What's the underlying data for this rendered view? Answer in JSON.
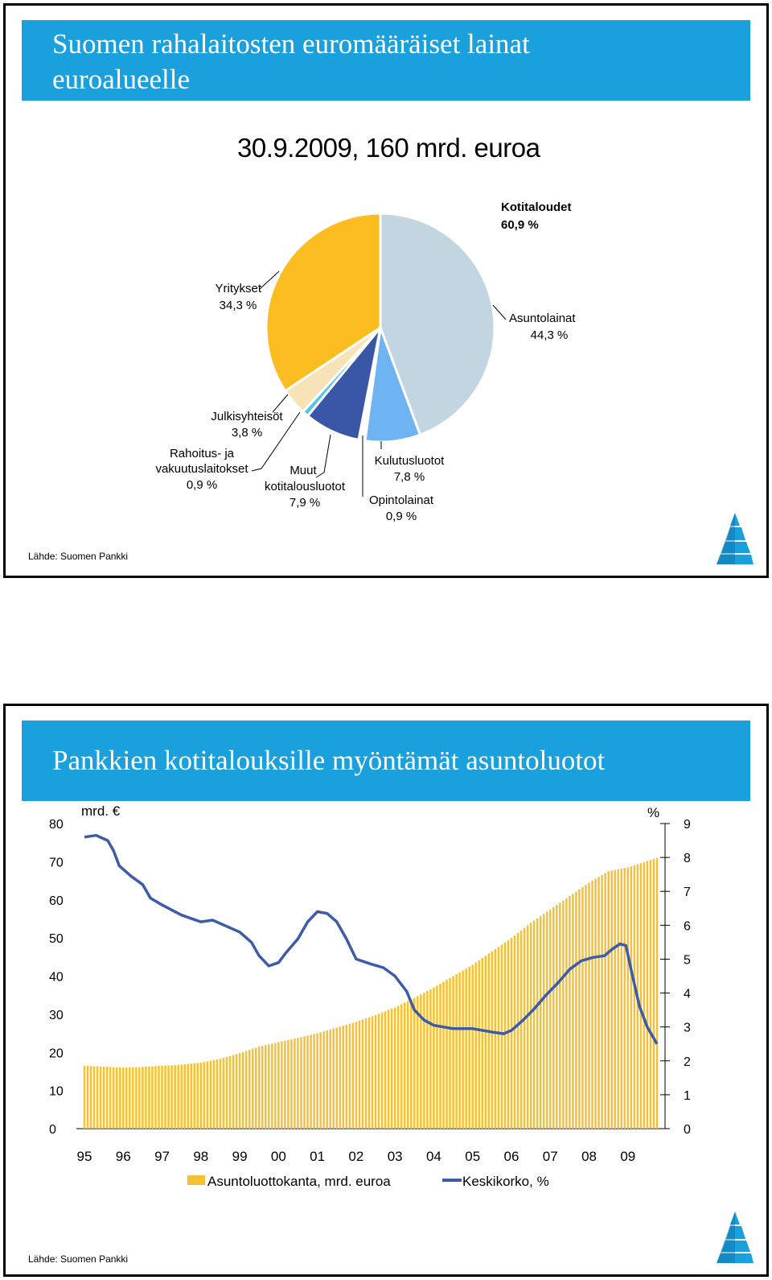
{
  "slide1": {
    "title": "Suomen rahalaitosten euromääräiset lainat euroalueelle",
    "subtitle": "30.9.2009, 160 mrd. euroa",
    "source": "Lähde: Suomen Pankki",
    "group_label": {
      "name": "Kotitaloudet",
      "value": "60,9 %"
    }
  },
  "chart_data": [
    {
      "type": "pie",
      "title": "30.9.2009, 160 mrd. euroa",
      "slices": [
        {
          "label": "Asuntolainat",
          "value": 44.3,
          "value_text": "44,3 %",
          "color": "#c2d6e2"
        },
        {
          "label": "Kulutusluotot",
          "value": 7.8,
          "value_text": "7,8 %",
          "color": "#6fb4f2"
        },
        {
          "label": "Opintolainat",
          "value": 0.9,
          "value_text": "0,9 %",
          "color": "#ffffff"
        },
        {
          "label": "Muut kotitalousluotot",
          "value": 7.9,
          "value_text": "7,9 %",
          "color": "#3a56a6"
        },
        {
          "label": "Rahoitus- ja vakuutuslaitokset",
          "value": 0.9,
          "value_text": "0,9 %",
          "color": "#58c3ee"
        },
        {
          "label": "Julkisyhteisöt",
          "value": 3.8,
          "value_text": "3,8 %",
          "color": "#f7e3b6"
        },
        {
          "label": "Yritykset",
          "value": 34.3,
          "value_text": "34,3 %",
          "color": "#fbbd1f"
        }
      ]
    },
    {
      "type": "bar+line",
      "title": "Pankkien kotitalouksille myöntämät asuntoluotot",
      "left_axis_label": "mrd. €",
      "right_axis_label": "%",
      "ylim_left": [
        0,
        80
      ],
      "ylim_right": [
        0,
        9
      ],
      "left_ticks": [
        "0",
        "10",
        "20",
        "30",
        "40",
        "50",
        "60",
        "70",
        "80"
      ],
      "right_ticks": [
        "0",
        "1",
        "2",
        "3",
        "4",
        "5",
        "6",
        "7",
        "8",
        "9"
      ],
      "x_ticks": [
        "95",
        "96",
        "97",
        "98",
        "99",
        "00",
        "01",
        "02",
        "03",
        "04",
        "05",
        "06",
        "07",
        "08",
        "09"
      ],
      "x_range": [
        1995.0,
        2009.75
      ],
      "series": [
        {
          "name": "Asuntoluottokanta, mrd. euroa",
          "type": "bar",
          "color": "#f5c133",
          "points": [
            [
              1995.0,
              16.5
            ],
            [
              1996.0,
              16.0
            ],
            [
              1996.5,
              16.2
            ],
            [
              1997.0,
              16.5
            ],
            [
              1997.5,
              16.8
            ],
            [
              1998.0,
              17.3
            ],
            [
              1998.5,
              18.3
            ],
            [
              1999.0,
              19.8
            ],
            [
              1999.5,
              21.5
            ],
            [
              2000.0,
              22.7
            ],
            [
              2000.5,
              23.8
            ],
            [
              2001.0,
              25.0
            ],
            [
              2001.5,
              26.5
            ],
            [
              2002.0,
              28.0
            ],
            [
              2002.5,
              29.8
            ],
            [
              2003.0,
              31.8
            ],
            [
              2003.5,
              34.3
            ],
            [
              2004.0,
              37.0
            ],
            [
              2004.5,
              40.0
            ],
            [
              2005.0,
              43.0
            ],
            [
              2005.5,
              46.5
            ],
            [
              2006.0,
              50.0
            ],
            [
              2006.5,
              54.0
            ],
            [
              2007.0,
              57.5
            ],
            [
              2007.5,
              61.0
            ],
            [
              2008.0,
              64.5
            ],
            [
              2008.5,
              67.5
            ],
            [
              2009.0,
              68.5
            ],
            [
              2009.75,
              71.0
            ]
          ]
        },
        {
          "name": "Keskikorko, %",
          "type": "line",
          "color": "#3c5ba8",
          "points": [
            [
              1995.0,
              8.6
            ],
            [
              1995.3,
              8.65
            ],
            [
              1995.6,
              8.5
            ],
            [
              1995.75,
              8.2
            ],
            [
              1995.9,
              7.75
            ],
            [
              1996.2,
              7.45
            ],
            [
              1996.5,
              7.2
            ],
            [
              1996.7,
              6.8
            ],
            [
              1997.0,
              6.6
            ],
            [
              1997.5,
              6.3
            ],
            [
              1998.0,
              6.1
            ],
            [
              1998.3,
              6.15
            ],
            [
              1998.6,
              6.0
            ],
            [
              1999.0,
              5.8
            ],
            [
              1999.3,
              5.5
            ],
            [
              1999.5,
              5.1
            ],
            [
              1999.75,
              4.8
            ],
            [
              2000.0,
              4.9
            ],
            [
              2000.2,
              5.2
            ],
            [
              2000.5,
              5.6
            ],
            [
              2000.75,
              6.1
            ],
            [
              2001.0,
              6.4
            ],
            [
              2001.25,
              6.35
            ],
            [
              2001.5,
              6.1
            ],
            [
              2001.75,
              5.6
            ],
            [
              2002.0,
              5.0
            ],
            [
              2002.4,
              4.85
            ],
            [
              2002.7,
              4.75
            ],
            [
              2003.0,
              4.5
            ],
            [
              2003.3,
              4.05
            ],
            [
              2003.5,
              3.5
            ],
            [
              2003.75,
              3.2
            ],
            [
              2004.0,
              3.05
            ],
            [
              2004.5,
              2.95
            ],
            [
              2005.0,
              2.95
            ],
            [
              2005.5,
              2.85
            ],
            [
              2005.8,
              2.8
            ],
            [
              2006.0,
              2.9
            ],
            [
              2006.3,
              3.2
            ],
            [
              2006.6,
              3.55
            ],
            [
              2006.9,
              3.95
            ],
            [
              2007.2,
              4.3
            ],
            [
              2007.5,
              4.7
            ],
            [
              2007.8,
              4.95
            ],
            [
              2008.1,
              5.05
            ],
            [
              2008.4,
              5.1
            ],
            [
              2008.6,
              5.3
            ],
            [
              2008.8,
              5.45
            ],
            [
              2008.95,
              5.4
            ],
            [
              2009.1,
              4.6
            ],
            [
              2009.3,
              3.6
            ],
            [
              2009.5,
              3.0
            ],
            [
              2009.75,
              2.5
            ]
          ]
        }
      ]
    }
  ],
  "slide2": {
    "title": "Pankkien kotitalouksille myöntämät asuntoluotot",
    "source": "Lähde: Suomen Pankki"
  }
}
